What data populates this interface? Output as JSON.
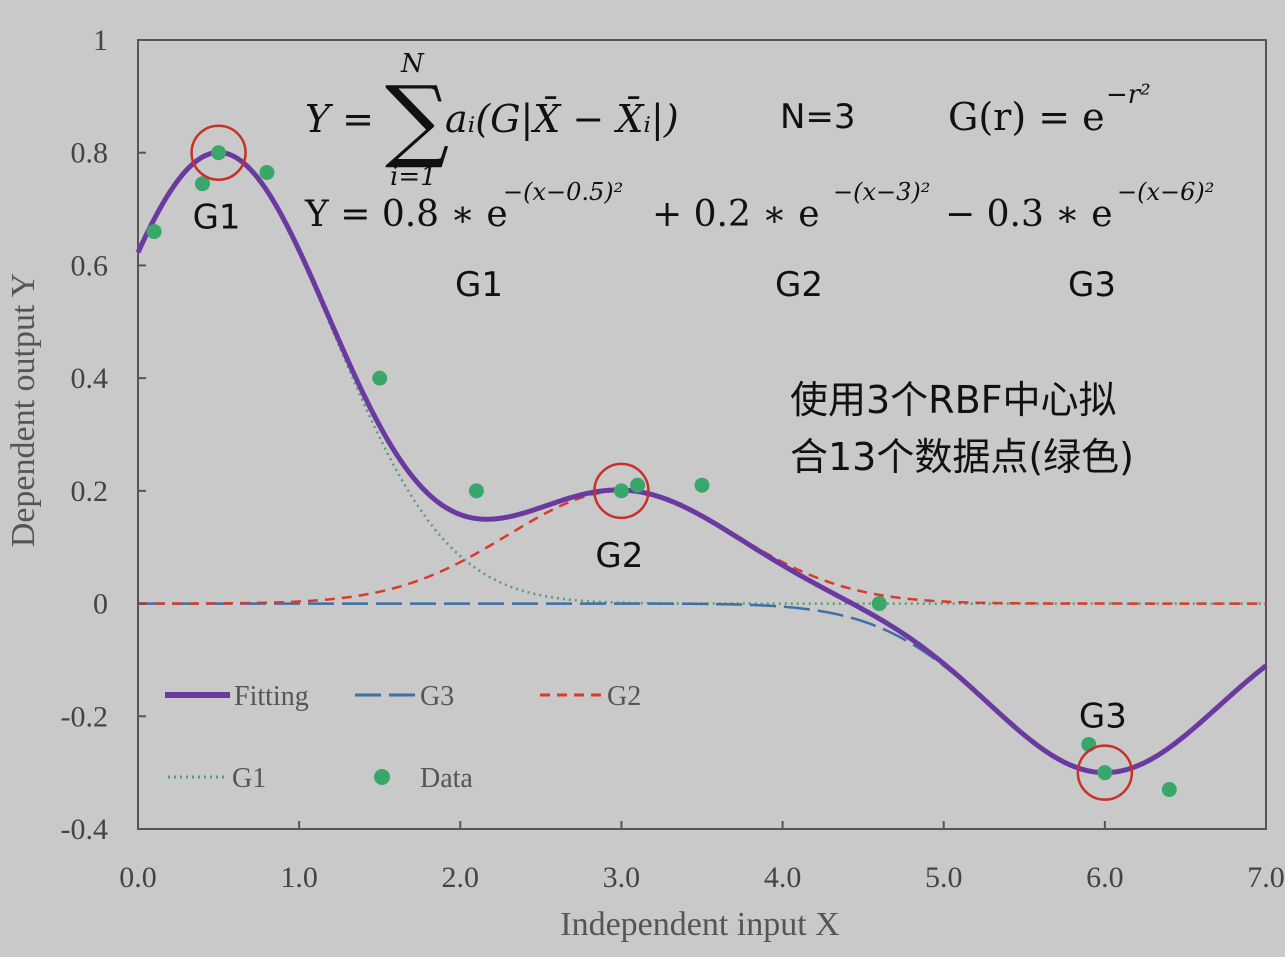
{
  "colors": {
    "background": "#c9c9c9",
    "fitting": "#6a3aa0",
    "g1": "#5a9a7a",
    "g2": "#d83a2e",
    "g3": "#3f6fa8",
    "data": "#3aa76a",
    "circle": "#c8302a"
  },
  "formulas": {
    "general": "Y = Σ a_i ( G | X̄ − X̄_i | ), i=1..N",
    "sum_lhs": "Y =",
    "sum_upper": "N",
    "sum_lower": "i=1",
    "sum_body": "aᵢ(G|X̄ − X̄ᵢ|)",
    "n_value": "N=3",
    "kernel": "G(r) = e",
    "kernel_exp": "−r²",
    "specific_part1": "Y = 0.8 ∗ e",
    "specific_exp1": "−(x−0.5)²",
    "specific_part2": " + 0.2 ∗ e",
    "specific_exp2": "−(x−3)²",
    "specific_part3": " − 0.3 ∗ e",
    "specific_exp3": "−(x−6)²",
    "term_labels": [
      "G1",
      "G2",
      "G3"
    ]
  },
  "note_lines": [
    "使用3个RBF中心拟",
    "合13个数据点(绿色)"
  ],
  "chart_data": {
    "type": "line",
    "xlabel": "Independent input X",
    "ylabel": "Dependent output Y",
    "xlim": [
      0,
      7
    ],
    "ylim": [
      -0.4,
      1.0
    ],
    "xticks": [
      0,
      1,
      2,
      3,
      4,
      5,
      6,
      7
    ],
    "xtick_labels": [
      "0.0",
      "1.0",
      "2.0",
      "3.0",
      "4.0",
      "5.0",
      "6.0",
      "7.0"
    ],
    "yticks": [
      1.0,
      0.8,
      0.6,
      0.4,
      0.2,
      0,
      -0.2,
      -0.4
    ],
    "ytick_labels": [
      "1",
      "0.8",
      "0.6",
      "0.4",
      "0.2",
      "0",
      "-0.2",
      "-0.4"
    ],
    "grid": false,
    "legend_position": "bottom-left",
    "rbf_centers": [
      {
        "name": "G1",
        "amplitude": 0.8,
        "center": 0.5
      },
      {
        "name": "G2",
        "amplitude": 0.2,
        "center": 3
      },
      {
        "name": "G3",
        "amplitude": -0.3,
        "center": 6
      }
    ],
    "series": [
      {
        "name": "Fitting",
        "style": "solid",
        "color": "#6a3aa0"
      },
      {
        "name": "G3",
        "style": "long-dash",
        "color": "#3f6fa8"
      },
      {
        "name": "G2",
        "style": "dashed",
        "color": "#d83a2e"
      },
      {
        "name": "G1",
        "style": "dotted",
        "color": "#5a9a7a"
      },
      {
        "name": "Data",
        "style": "markers",
        "color": "#3aa76a"
      }
    ],
    "data_points": [
      {
        "x": 0.1,
        "y": 0.66
      },
      {
        "x": 0.4,
        "y": 0.745
      },
      {
        "x": 0.5,
        "y": 0.8
      },
      {
        "x": 0.8,
        "y": 0.765
      },
      {
        "x": 1.5,
        "y": 0.4
      },
      {
        "x": 2.1,
        "y": 0.2
      },
      {
        "x": 3.0,
        "y": 0.2
      },
      {
        "x": 3.1,
        "y": 0.21
      },
      {
        "x": 3.5,
        "y": 0.21
      },
      {
        "x": 4.6,
        "y": 0.0
      },
      {
        "x": 5.9,
        "y": -0.25
      },
      {
        "x": 6.0,
        "y": -0.3
      },
      {
        "x": 6.4,
        "y": -0.33
      }
    ],
    "highlighted_peaks": [
      {
        "label": "G1",
        "x": 0.5,
        "y": 0.8,
        "label_side": "below"
      },
      {
        "label": "G2",
        "x": 3.0,
        "y": 0.2,
        "label_side": "below"
      },
      {
        "label": "G3",
        "x": 6.0,
        "y": -0.3,
        "label_side": "above"
      }
    ]
  }
}
